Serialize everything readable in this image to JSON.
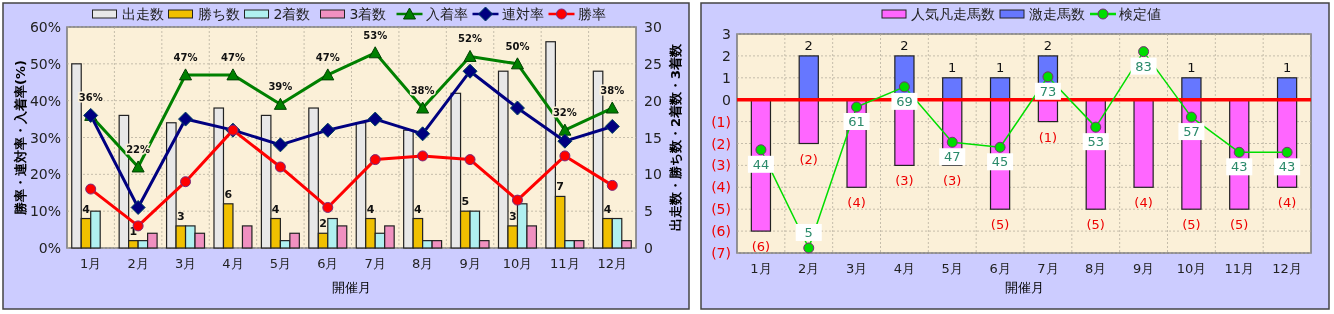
{
  "chart_data": [
    {
      "type": "bar",
      "xlabel": "開催月",
      "ylabel": "勝率・連対率・入着率(%)",
      "y2label": "出走数・勝ち数・2着数・3着数",
      "categories": [
        "1月",
        "2月",
        "3月",
        "4月",
        "5月",
        "6月",
        "7月",
        "8月",
        "9月",
        "10月",
        "11月",
        "12月"
      ],
      "ylim": [
        0,
        60
      ],
      "yticks": [
        {
          "value": 0,
          "label": "0%"
        },
        {
          "value": 10,
          "label": "10%"
        },
        {
          "value": 20,
          "label": "20%"
        },
        {
          "value": 30,
          "label": "30%"
        },
        {
          "value": 40,
          "label": "40%"
        },
        {
          "value": 50,
          "label": "50%"
        },
        {
          "value": 60,
          "label": "60%"
        }
      ],
      "y2lim": [
        0,
        30
      ],
      "y2ticks": [
        0,
        5,
        10,
        15,
        20,
        25,
        30
      ],
      "grid": true,
      "legend": "top",
      "series": [
        {
          "name": "出走数",
          "axis": "y2",
          "color": "#e8e8e8",
          "values": [
            25,
            18,
            17,
            19,
            18,
            19,
            17,
            16,
            21,
            24,
            28,
            24
          ]
        },
        {
          "name": "勝ち数",
          "axis": "y2",
          "color": "#f0c000",
          "values": [
            4,
            1,
            3,
            6,
            4,
            2,
            4,
            4,
            5,
            3,
            7,
            4
          ],
          "value_labels": [
            "4",
            "1",
            "3",
            "6",
            "4",
            "2",
            "4",
            "4",
            "5",
            "3",
            "7",
            "4"
          ]
        },
        {
          "name": "2着数",
          "axis": "y2",
          "color": "#b0f0f0",
          "values": [
            5,
            1,
            3,
            0,
            1,
            4,
            2,
            1,
            5,
            6,
            1,
            4
          ]
        },
        {
          "name": "3着数",
          "axis": "y2",
          "color": "#f090c0",
          "values": [
            0,
            2,
            2,
            3,
            2,
            3,
            3,
            1,
            1,
            3,
            1,
            1
          ]
        },
        {
          "name": "入着率",
          "type": "line",
          "color": "#008000",
          "marker": "triangle",
          "values": [
            36,
            22,
            47,
            47,
            39,
            47,
            53,
            38,
            52,
            50,
            32,
            38
          ],
          "value_labels": [
            "36%",
            "22%",
            "47%",
            "47%",
            "39%",
            "47%",
            "53%",
            "38%",
            "52%",
            "50%",
            "32%",
            "38%"
          ]
        },
        {
          "name": "連対率",
          "type": "line",
          "color": "#000080",
          "marker": "diamond",
          "values": [
            36,
            11,
            35,
            32,
            28,
            32,
            35,
            31,
            48,
            38,
            29,
            33
          ]
        },
        {
          "name": "勝率",
          "type": "line",
          "color": "#ff0000",
          "marker": "circle",
          "values": [
            16,
            6,
            18,
            32,
            22,
            11,
            24,
            25,
            24,
            13,
            25,
            17
          ]
        }
      ]
    },
    {
      "type": "bar",
      "xlabel": "開催月",
      "stacked": true,
      "categories": [
        "1月",
        "2月",
        "3月",
        "4月",
        "5月",
        "6月",
        "7月",
        "8月",
        "9月",
        "10月",
        "11月",
        "12月"
      ],
      "ylim": [
        -7,
        3
      ],
      "yticks": [
        {
          "value": -7,
          "label": "(7)"
        },
        {
          "value": -6,
          "label": "(6)"
        },
        {
          "value": -5,
          "label": "(5)"
        },
        {
          "value": -4,
          "label": "(4)"
        },
        {
          "value": -3,
          "label": "(3)"
        },
        {
          "value": -2,
          "label": "(2)"
        },
        {
          "value": -1,
          "label": "(1)"
        },
        0,
        1,
        2,
        3
      ],
      "y2lim": [
        3,
        90
      ],
      "grid": true,
      "legend": "top",
      "ref_lines": [
        {
          "axis": "y",
          "value": 0,
          "color": "#ff0000"
        }
      ],
      "series": [
        {
          "name": "人気凡走馬数",
          "color": "#ff66ff",
          "values": [
            -6,
            -2,
            -4,
            -3,
            -3,
            -5,
            -1,
            -5,
            -4,
            -5,
            -5,
            -4
          ],
          "value_labels": [
            "(6)",
            "(2)",
            "(4)",
            "(3)",
            "(3)",
            "(5)",
            "(1)",
            "(5)",
            "(4)",
            "(5)",
            "(5)",
            "(4)"
          ]
        },
        {
          "name": "激走馬数",
          "color": "#6677ff",
          "values": [
            0,
            2,
            0,
            2,
            1,
            1,
            2,
            0,
            0,
            1,
            0,
            1
          ],
          "value_labels": [
            null,
            "2",
            null,
            "2",
            "1",
            "1",
            "2",
            null,
            null,
            "1",
            null,
            "1"
          ]
        },
        {
          "name": "検定値",
          "type": "line",
          "axis": "y2",
          "color": "#00dd00",
          "marker": "circle",
          "values": [
            44,
            5,
            61,
            69,
            47,
            45,
            73,
            53,
            83,
            57,
            43,
            43
          ],
          "value_labels": [
            "44",
            "5",
            "61",
            "69",
            "47",
            "45",
            "73",
            "53",
            "83",
            "57",
            "43",
            "43"
          ]
        }
      ]
    }
  ]
}
